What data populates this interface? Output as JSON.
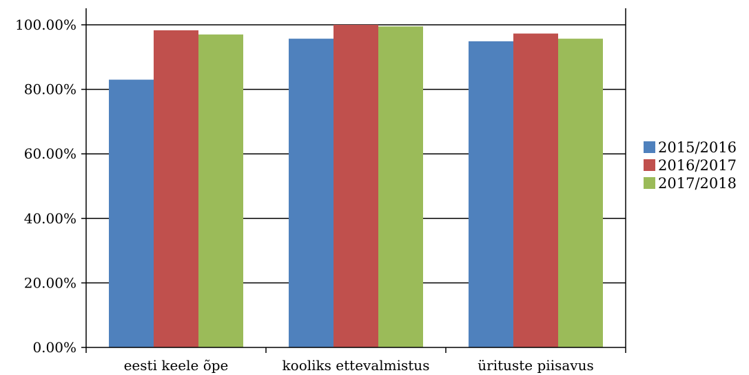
{
  "chart_data": {
    "type": "bar",
    "categories": [
      "eesti keele õpe",
      "kooliks ettevalmistus",
      "ürituste piisavus"
    ],
    "series": [
      {
        "name": "2015/2016",
        "color": "#4F81BD",
        "values": [
          0.83,
          0.957,
          0.949
        ]
      },
      {
        "name": "2016/2017",
        "color": "#C0504D",
        "values": [
          0.983,
          1.0,
          0.973
        ]
      },
      {
        "name": "2017/2018",
        "color": "#9BBB59",
        "values": [
          0.97,
          0.995,
          0.957
        ]
      }
    ],
    "y_ticks": [
      0,
      0.2,
      0.4,
      0.6,
      0.8,
      1.0
    ],
    "y_tick_labels": [
      "0.00%",
      "20.00%",
      "40.00%",
      "60.00%",
      "80.00%",
      "100.00%"
    ],
    "ylim": [
      0,
      1.0
    ],
    "grid": true,
    "legend_position": "right",
    "title": "",
    "xlabel": "",
    "ylabel": ""
  }
}
